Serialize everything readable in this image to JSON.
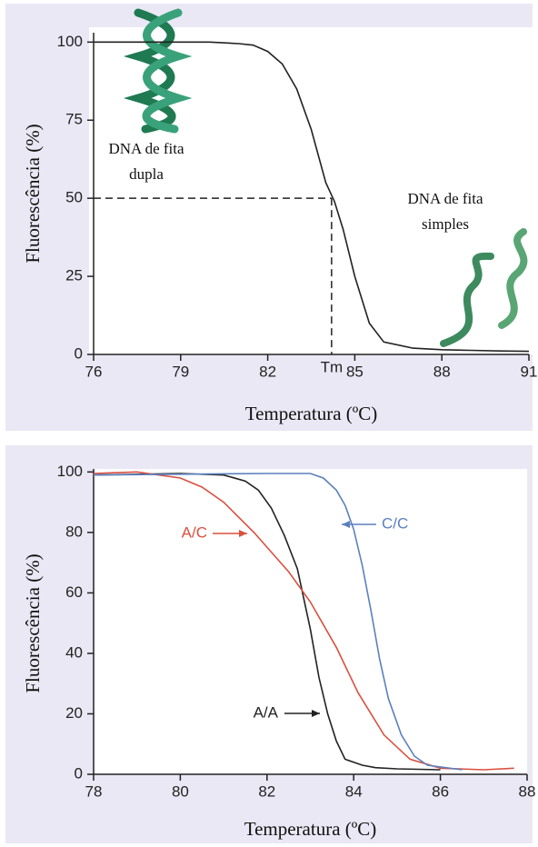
{
  "chart_data": [
    {
      "type": "line",
      "x": [
        76,
        78,
        80,
        81,
        81.5,
        82,
        82.5,
        83,
        83.5,
        84,
        84.3,
        84.6,
        85,
        85.5,
        86,
        87,
        88,
        89,
        90,
        91
      ],
      "values": [
        100,
        100,
        100,
        99.5,
        99,
        97,
        93,
        85,
        72,
        55,
        49,
        40,
        25,
        10,
        4,
        2,
        1.5,
        1.3,
        1.1,
        1
      ],
      "color": "#222222",
      "xlim": [
        76,
        91
      ],
      "xticks": [
        76,
        79,
        82,
        85,
        88,
        91
      ],
      "ylim": [
        0,
        103
      ],
      "yticks": [
        0,
        25,
        50,
        75,
        100
      ],
      "xlabel": "Temperatura (ºC)",
      "ylabel": "Fluorescência (%)",
      "reference": {
        "x": 84.2,
        "y": 50,
        "label": "Tm"
      },
      "annotations": [
        {
          "lines": [
            "DNA de fita",
            "dupla"
          ]
        },
        {
          "lines": [
            "DNA de fita",
            "simples"
          ]
        }
      ]
    },
    {
      "type": "line",
      "xlim": [
        78,
        88
      ],
      "xticks": [
        78,
        80,
        82,
        84,
        86,
        88
      ],
      "ylim": [
        0,
        101
      ],
      "yticks": [
        0,
        20,
        40,
        60,
        80,
        100
      ],
      "xlabel": "Temperatura (ºC)",
      "ylabel": "Fluorescência (%)",
      "series": [
        {
          "name": "A/A",
          "color": "#222222",
          "x": [
            78,
            80,
            81,
            81.5,
            81.8,
            82.1,
            82.4,
            82.7,
            83,
            83.2,
            83.4,
            83.6,
            83.8,
            84.2,
            84.5,
            85,
            86
          ],
          "values": [
            99,
            99.5,
            99,
            97,
            94,
            88,
            79,
            68,
            48,
            32,
            20,
            11,
            5,
            3,
            2.2,
            1.8,
            1.5
          ]
        },
        {
          "name": "A/C",
          "color": "#d9503f",
          "x": [
            78,
            79,
            80,
            80.5,
            81,
            81.7,
            82.5,
            83,
            83.6,
            84.1,
            84.7,
            85.3,
            86,
            87,
            87.7
          ],
          "values": [
            99.5,
            100,
            98,
            95,
            90,
            80,
            67,
            57,
            42,
            27,
            13,
            5,
            2,
            1.5,
            2
          ]
        },
        {
          "name": "C/C",
          "color": "#5b7fbf",
          "x": [
            78,
            82,
            83,
            83.3,
            83.6,
            83.8,
            84,
            84.2,
            84.4,
            84.6,
            84.8,
            85.1,
            85.4,
            85.7,
            86.5
          ],
          "values": [
            99,
            99.5,
            99.5,
            98,
            94,
            89,
            81,
            69,
            54,
            38,
            25,
            13,
            6,
            3,
            1.5
          ]
        }
      ]
    }
  ]
}
